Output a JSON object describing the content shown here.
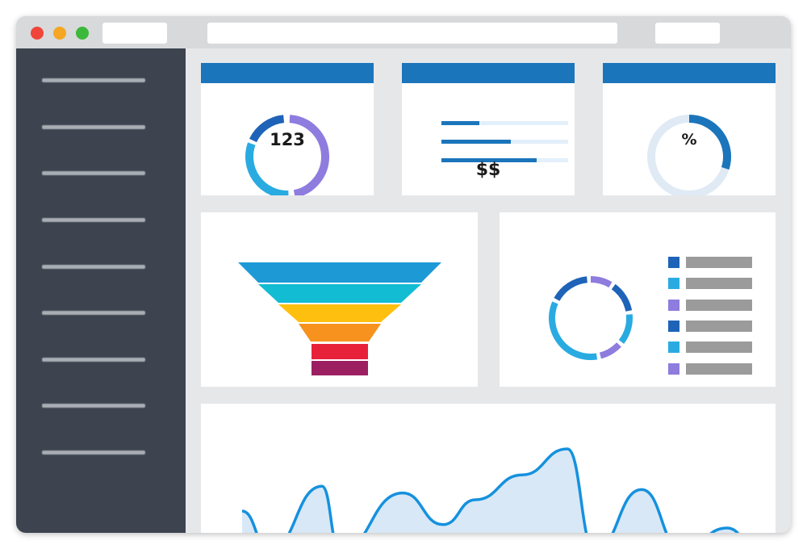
{
  "window": {
    "traffic_lights": [
      {
        "name": "close",
        "color": "#f0453a"
      },
      {
        "name": "minimize",
        "color": "#f5a623"
      },
      {
        "name": "maximize",
        "color": "#3cb93a"
      }
    ]
  },
  "colors": {
    "accent": "#1b75bb",
    "sidebar": "#3d4450",
    "background": "#e6e7e9"
  },
  "kpi_cards": {
    "count": {
      "label": "123",
      "segments": [
        {
          "from": 0.01,
          "to": 0.47,
          "color": "#8e7cde"
        },
        {
          "from": 0.495,
          "to": 0.805,
          "color": "#29abe2"
        },
        {
          "from": 0.82,
          "to": 0.985,
          "color": "#1e63b8"
        }
      ]
    },
    "revenue": {
      "label": "$$",
      "bars": [
        0.3,
        0.55,
        0.75
      ]
    },
    "percent": {
      "label": "%",
      "value": 0.3
    }
  },
  "funnel": {
    "colors": [
      "#1d9ad6",
      "#12bcd3",
      "#ffbf0f",
      "#f7921e",
      "#e8213b",
      "#9c1f62"
    ]
  },
  "breakdown": {
    "segments": [
      {
        "from": 0.0,
        "to": 0.085,
        "color": "#8e7cde"
      },
      {
        "from": 0.1,
        "to": 0.22,
        "color": "#1e63b8"
      },
      {
        "from": 0.235,
        "to": 0.355,
        "color": "#29abe2"
      },
      {
        "from": 0.37,
        "to": 0.46,
        "color": "#8e7cde"
      },
      {
        "from": 0.475,
        "to": 0.815,
        "color": "#29abe2"
      },
      {
        "from": 0.83,
        "to": 0.985,
        "color": "#1e63b8"
      }
    ],
    "legend_colors": [
      "#1e63b8",
      "#29abe2",
      "#8e7cde",
      "#1e63b8",
      "#29abe2",
      "#8e7cde"
    ]
  },
  "area_chart": {
    "line_color": "#1591de",
    "fill_color": "#d9e8f6",
    "values": [
      30,
      -5,
      52,
      -5,
      46,
      18,
      40,
      62,
      85,
      -5,
      49,
      -5,
      15,
      -5
    ]
  }
}
